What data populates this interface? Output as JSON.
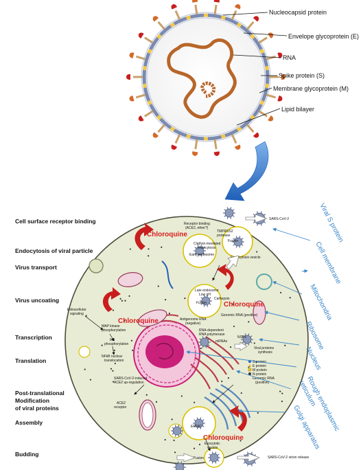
{
  "virion": {
    "labels": [
      "Nucleocapsid protein",
      "Envelope glycoprotein (E)",
      "RNA",
      "Spike protein (S)",
      "Membrane glycoprotein (M)",
      "Lipid bilayer"
    ]
  },
  "stages": [
    "Cell surface receptor binding",
    "Endocytosis of viral particle",
    "Virus transport",
    "Virus uncoating",
    "Transcription",
    "Translation",
    "Post-translational",
    "Modification",
    "of viral proteins",
    "Assembly",
    "Budding"
  ],
  "organelles": [
    "Viral S protein",
    "Cell membrane",
    "Mitochondria",
    "Ribosome",
    "Nucleus",
    "Rough endoplasmic",
    "reticulum",
    "Golgi apparatus"
  ],
  "drug": "Chloroquine",
  "details": {
    "sars_top": "SARS-CoV-2",
    "receptor_binding": "Receptor binding",
    "ace2": "(ACE2, ether?)",
    "tmprss2": "TMPRSS2",
    "protease": "protease",
    "fusion": "Fusion",
    "clathrin": "Clathrin-mediated",
    "endocytosis": "endocytosis",
    "early_endosome": "Early endosome",
    "endocytosis_vesicle": "Endocytosis vesicle",
    "late_endosome": "Late endosome",
    "low_ph": "Low pH",
    "cathepsin": "Cathepsin",
    "fusion2": "Fusion",
    "genomic_rna_pos": "Genomic RNA (positive)",
    "extracellular": "Extracellular",
    "signaling": "signaling",
    "map_kinase": "MAP kinase",
    "phosphorylation": "phosphorylation",
    "ikb": "IkB",
    "ikb_phos": "phosphorylation",
    "nfkb": "NFkB nuclear",
    "translocation": "translocation",
    "antigenome": "Antigenome RNA",
    "negative": "(negative)",
    "rdrp1": "RNA-dependent",
    "rdrp2": "RNA polymerase",
    "nsps": "NSPs",
    "mrnas": "mRNAs",
    "viral_proteins": "Viral proteins",
    "synthesis": "synthesis",
    "s_protein": "S protein",
    "e_protein": "E protein",
    "m_protein": "M protein",
    "n_protein": "N protein",
    "genomic_rna": "Genomic RNA",
    "positive": "(positive)",
    "sars_induced": "SARS-CoV-2-induced",
    "ace2_up": "ACE2 up-regulation",
    "ace2_receptor": "ACE2",
    "receptor": "receptor",
    "ergic": "ERGIC",
    "exocytotic": "Exocytotic",
    "vesicle": "vesicle",
    "fusion3": "Fusion",
    "release": "SARS-CoV-2 virion release"
  },
  "colors": {
    "cytoplasm": "#e9ecd4",
    "drug": "#d81e1e",
    "organelle_label": "#3a86c8",
    "nucleus": "#c9207a",
    "spike": "#c81e1e",
    "rna": "#b8662a"
  }
}
